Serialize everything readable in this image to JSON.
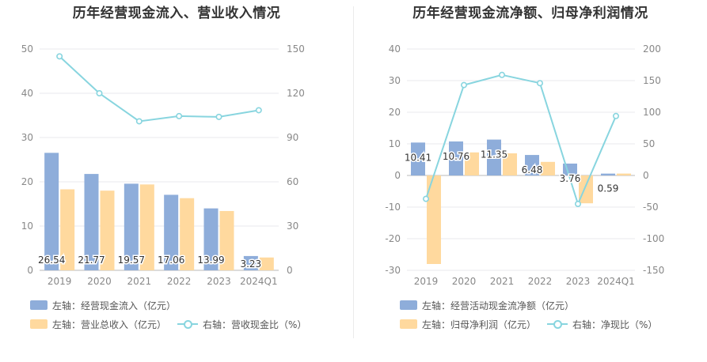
{
  "colors": {
    "blue_bar": "#8eadda",
    "orange_bar": "#ffd99e",
    "line": "#88d5df",
    "grid": "#e8e8ee",
    "axis_text": "#888888",
    "label_text": "#333333"
  },
  "chart_data": [
    {
      "type": "bar+line",
      "title": "历年经营现金流入、营业收入情况",
      "categories": [
        "2019",
        "2020",
        "2021",
        "2022",
        "2023",
        "2024Q1"
      ],
      "left_axis": {
        "ylim": [
          0,
          50
        ],
        "ticks": [
          0,
          10,
          20,
          30,
          40,
          50
        ]
      },
      "right_axis": {
        "ylim": [
          0,
          150
        ],
        "ticks": [
          0,
          30,
          60,
          90,
          120,
          150
        ]
      },
      "series": [
        {
          "name": "左轴：经营现金流入（亿元）",
          "type": "bar",
          "axis": "left",
          "color": "#8eadda",
          "values": [
            26.54,
            21.77,
            19.57,
            17.06,
            13.99,
            3.23
          ],
          "show_labels": true
        },
        {
          "name": "左轴：营业总收入（亿元）",
          "type": "bar",
          "axis": "left",
          "color": "#ffd99e",
          "values": [
            18.3,
            18.0,
            19.4,
            16.3,
            13.4,
            2.9
          ],
          "show_labels": false
        },
        {
          "name": "右轴：营收现金比（%）",
          "type": "line",
          "axis": "right",
          "color": "#88d5df",
          "values": [
            145,
            120,
            101,
            104.5,
            104,
            108.5
          ]
        }
      ],
      "grid": true,
      "legend": "bottom"
    },
    {
      "type": "bar+line",
      "title": "历年经营现金流净额、归母净利润情况",
      "categories": [
        "2019",
        "2020",
        "2021",
        "2022",
        "2023",
        "2024Q1"
      ],
      "left_axis": {
        "ylim": [
          -30,
          40
        ],
        "ticks": [
          -30,
          -20,
          -10,
          0,
          10,
          20,
          30,
          40
        ]
      },
      "right_axis": {
        "ylim": [
          -150,
          200
        ],
        "ticks": [
          -150,
          -100,
          -50,
          0,
          50,
          100,
          150,
          200
        ]
      },
      "series": [
        {
          "name": "左轴：经营活动现金流净额（亿元）",
          "type": "bar",
          "axis": "left",
          "color": "#8eadda",
          "values": [
            10.41,
            10.76,
            11.35,
            6.48,
            3.76,
            0.59
          ],
          "show_labels": true
        },
        {
          "name": "左轴：归母净利润（亿元）",
          "type": "bar",
          "axis": "left",
          "color": "#ffd99e",
          "values": [
            -28,
            7.3,
            7.0,
            4.3,
            -8.8,
            0.6
          ],
          "show_labels": false
        },
        {
          "name": "右轴：净现比（%）",
          "type": "line",
          "axis": "right",
          "color": "#88d5df",
          "values": [
            -37,
            143,
            159,
            146,
            -45,
            94
          ]
        }
      ],
      "grid": true,
      "legend": "bottom"
    }
  ]
}
